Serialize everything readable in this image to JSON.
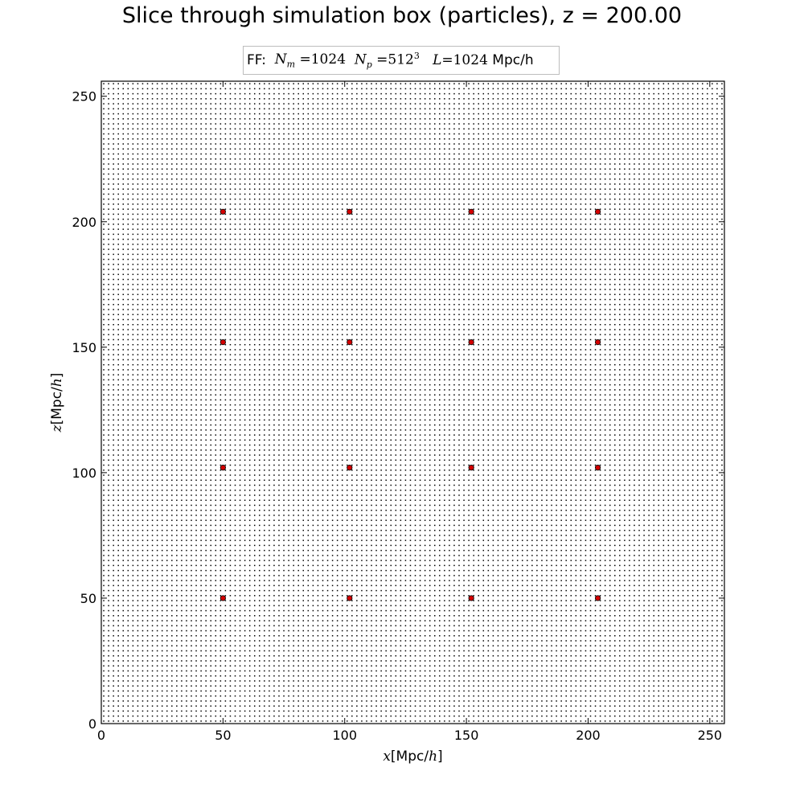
{
  "chart_data": {
    "type": "scatter",
    "title": "Slice through simulation box (particles), z = 200.00",
    "legend": {
      "prefix": "FF:",
      "n_mesh_symbol": "N",
      "n_mesh_sub": "m",
      "n_mesh_value": "=1024",
      "n_part_symbol": "N",
      "n_part_sub": "p",
      "n_part_value": "=512",
      "n_part_exp": "3",
      "box_symbol": "L",
      "box_value": "=1024",
      "box_unit": "Mpc/h",
      "placement": "top-center"
    },
    "xlabel": {
      "var": "x",
      "open": "[",
      "unit": "Mpc/",
      "unit_it": "h",
      "close": "]"
    },
    "ylabel": {
      "var": "z",
      "open": "[",
      "unit": "Mpc/",
      "unit_it": "h",
      "close": "]"
    },
    "xlim": [
      0,
      256
    ],
    "ylim": [
      0,
      256
    ],
    "xticks": [
      0,
      50,
      100,
      150,
      200,
      250
    ],
    "yticks": [
      0,
      50,
      100,
      150,
      200,
      250
    ],
    "grid": false,
    "series": [
      {
        "marker": "dot",
        "color": "#000000",
        "lattice": {
          "start": 1,
          "step": 2,
          "stop": 255
        }
      },
      {
        "marker": "circle",
        "color": "#d40000",
        "edgecolor": "#000000",
        "points": [
          [
            50,
            204
          ],
          [
            102,
            204
          ],
          [
            152,
            204
          ],
          [
            204,
            204
          ],
          [
            50,
            152
          ],
          [
            102,
            152
          ],
          [
            152,
            152
          ],
          [
            204,
            152
          ],
          [
            50,
            102
          ],
          [
            102,
            102
          ],
          [
            152,
            102
          ],
          [
            204,
            102
          ],
          [
            50,
            50
          ],
          [
            102,
            50
          ],
          [
            152,
            50
          ],
          [
            204,
            50
          ]
        ]
      }
    ]
  }
}
